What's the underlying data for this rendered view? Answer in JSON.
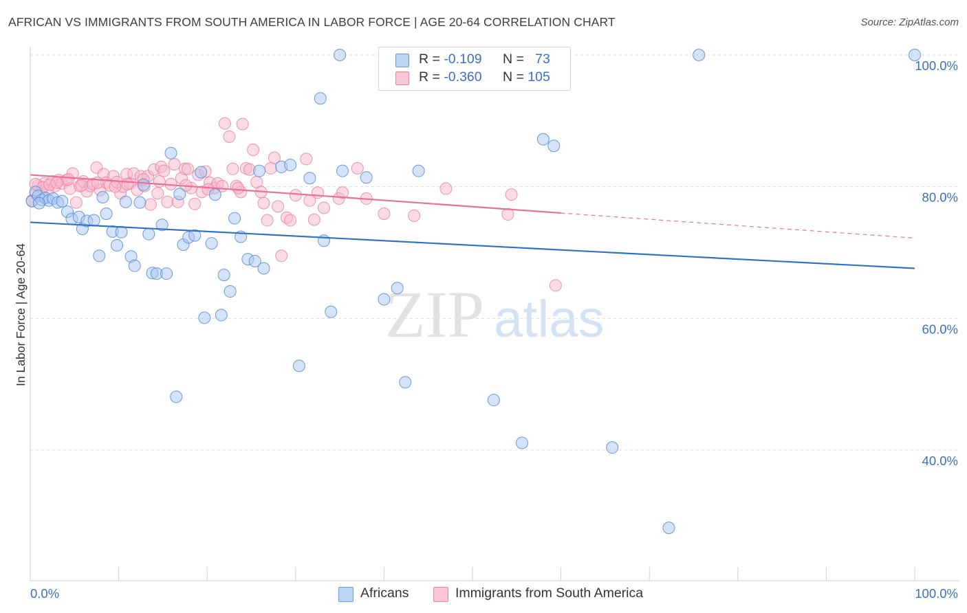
{
  "title": "AFRICAN VS IMMIGRANTS FROM SOUTH AMERICA IN LABOR FORCE | AGE 20-64 CORRELATION CHART",
  "source": "Source: ZipAtlas.com",
  "watermark": {
    "zip": "ZIP",
    "atlas": "atlas"
  },
  "legend": {
    "r_label": "R =",
    "n_label": "N =",
    "rows": [
      {
        "r": "-0.109",
        "n": "73"
      },
      {
        "r": "-0.360",
        "n": "105"
      }
    ]
  },
  "bottom_legend": [
    "Africans",
    "Immigrants from South America"
  ],
  "colors": {
    "africans_fill": "#a9c8f0",
    "africans_stroke": "#5a8fd6",
    "africans_line": "#2f72c8",
    "sa_fill": "#f7b8cc",
    "sa_stroke": "#e7829f",
    "sa_line": "#e8709a",
    "axis_text": "#3a6fc4",
    "grid": "#dcdcdc"
  },
  "chart_data": {
    "type": "scatter",
    "ylabel": "In Labor Force | Age 20-64",
    "xlim": [
      0,
      100
    ],
    "ylim": [
      20,
      102
    ],
    "x_tick_labels": [
      "0.0%",
      "100.0%"
    ],
    "y_ticks": [
      40,
      60,
      80,
      100
    ],
    "y_tick_labels": [
      "40.0%",
      "60.0%",
      "80.0%",
      "100.0%"
    ],
    "grid": true,
    "series": [
      {
        "name": "Africans",
        "points": [
          [
            0.2,
            77.8
          ],
          [
            0.6,
            79.2
          ],
          [
            0.9,
            78.6
          ],
          [
            1.3,
            78.0
          ],
          [
            1.7,
            78.3
          ],
          [
            2.1,
            77.9
          ],
          [
            2.6,
            78.2
          ],
          [
            3.1,
            77.6
          ],
          [
            3.6,
            77.8
          ],
          [
            4.2,
            76.2
          ],
          [
            4.7,
            75.1
          ],
          [
            5.5,
            75.4
          ],
          [
            5.9,
            73.6
          ],
          [
            6.4,
            74.8
          ],
          [
            7.2,
            74.9
          ],
          [
            7.8,
            69.5
          ],
          [
            8.2,
            78.4
          ],
          [
            8.6,
            75.9
          ],
          [
            9.3,
            73.2
          ],
          [
            9.8,
            71.1
          ],
          [
            10.3,
            73.1
          ],
          [
            10.8,
            77.7
          ],
          [
            11.4,
            69.4
          ],
          [
            11.8,
            68.0
          ],
          [
            12.4,
            77.6
          ],
          [
            12.8,
            80.3
          ],
          [
            13.4,
            72.8
          ],
          [
            13.8,
            66.9
          ],
          [
            14.3,
            66.8
          ],
          [
            14.9,
            74.2
          ],
          [
            15.4,
            66.8
          ],
          [
            15.9,
            85.1
          ],
          [
            16.5,
            48.1
          ],
          [
            16.9,
            78.9
          ],
          [
            17.3,
            71.2
          ],
          [
            17.9,
            72.3
          ],
          [
            18.6,
            72.6
          ],
          [
            19.3,
            82.2
          ],
          [
            19.7,
            60.1
          ],
          [
            20.5,
            71.4
          ],
          [
            20.9,
            78.8
          ],
          [
            21.6,
            60.5
          ],
          [
            21.9,
            66.6
          ],
          [
            22.6,
            64.1
          ],
          [
            23.1,
            75.2
          ],
          [
            23.8,
            72.4
          ],
          [
            24.6,
            69.0
          ],
          [
            25.4,
            68.7
          ],
          [
            25.9,
            82.4
          ],
          [
            26.4,
            67.6
          ],
          [
            28.4,
            83.0
          ],
          [
            29.4,
            83.3
          ],
          [
            30.4,
            52.8
          ],
          [
            31.6,
            81.3
          ],
          [
            32.8,
            93.4
          ],
          [
            33.2,
            71.8
          ],
          [
            34.0,
            61.0
          ],
          [
            35.0,
            100.0
          ],
          [
            35.3,
            82.4
          ],
          [
            38.0,
            81.4
          ],
          [
            40.0,
            62.9
          ],
          [
            41.5,
            64.6
          ],
          [
            42.4,
            50.3
          ],
          [
            43.9,
            82.4
          ],
          [
            52.4,
            47.6
          ],
          [
            55.6,
            41.1
          ],
          [
            58.0,
            87.2
          ],
          [
            59.2,
            86.2
          ],
          [
            65.8,
            40.4
          ],
          [
            72.2,
            28.2
          ],
          [
            75.6,
            100.0
          ],
          [
            100.0,
            100.0
          ],
          [
            1.0,
            77.5
          ]
        ]
      },
      {
        "name": "Immigrants from South America",
        "points": [
          [
            0.2,
            77.9
          ],
          [
            0.6,
            79.0
          ],
          [
            0.9,
            80.2
          ],
          [
            1.3,
            78.6
          ],
          [
            1.6,
            80.5
          ],
          [
            2.0,
            79.4
          ],
          [
            2.5,
            80.8
          ],
          [
            2.8,
            80.1
          ],
          [
            3.2,
            81.0
          ],
          [
            3.6,
            80.5
          ],
          [
            4.1,
            81.0
          ],
          [
            4.5,
            79.7
          ],
          [
            4.8,
            82.0
          ],
          [
            5.2,
            77.6
          ],
          [
            5.6,
            80.1
          ],
          [
            6.0,
            80.8
          ],
          [
            6.4,
            79.3
          ],
          [
            6.8,
            80.1
          ],
          [
            7.1,
            80.4
          ],
          [
            7.5,
            82.9
          ],
          [
            7.9,
            79.5
          ],
          [
            8.3,
            81.9
          ],
          [
            8.6,
            80.6
          ],
          [
            9.0,
            80.2
          ],
          [
            9.4,
            81.6
          ],
          [
            9.8,
            80.7
          ],
          [
            10.2,
            79.0
          ],
          [
            10.5,
            80.0
          ],
          [
            10.9,
            81.9
          ],
          [
            11.3,
            80.5
          ],
          [
            11.7,
            82.0
          ],
          [
            12.1,
            79.5
          ],
          [
            12.5,
            81.6
          ],
          [
            12.9,
            80.1
          ],
          [
            13.3,
            81.6
          ],
          [
            13.6,
            77.3
          ],
          [
            14.0,
            82.6
          ],
          [
            14.4,
            79.0
          ],
          [
            14.8,
            83.0
          ],
          [
            15.1,
            82.4
          ],
          [
            15.5,
            77.7
          ],
          [
            15.9,
            80.4
          ],
          [
            16.3,
            83.4
          ],
          [
            16.7,
            77.7
          ],
          [
            17.1,
            81.3
          ],
          [
            17.5,
            82.7
          ],
          [
            17.8,
            82.7
          ],
          [
            18.2,
            79.8
          ],
          [
            18.6,
            77.4
          ],
          [
            19.0,
            81.8
          ],
          [
            19.4,
            79.2
          ],
          [
            19.8,
            82.3
          ],
          [
            20.3,
            80.6
          ],
          [
            20.8,
            79.8
          ],
          [
            21.2,
            80.5
          ],
          [
            21.7,
            80.1
          ],
          [
            22.0,
            89.6
          ],
          [
            22.5,
            87.6
          ],
          [
            22.9,
            82.7
          ],
          [
            23.3,
            80.1
          ],
          [
            23.8,
            79.2
          ],
          [
            24.0,
            89.5
          ],
          [
            24.4,
            82.8
          ],
          [
            24.8,
            82.6
          ],
          [
            25.2,
            85.6
          ],
          [
            25.6,
            80.7
          ],
          [
            26.1,
            79.2
          ],
          [
            26.4,
            77.5
          ],
          [
            26.8,
            74.9
          ],
          [
            27.2,
            82.8
          ],
          [
            27.6,
            84.4
          ],
          [
            28.0,
            77.0
          ],
          [
            28.4,
            69.5
          ],
          [
            29.0,
            75.3
          ],
          [
            29.4,
            74.9
          ],
          [
            30.0,
            78.7
          ],
          [
            31.2,
            84.2
          ],
          [
            31.6,
            77.9
          ],
          [
            32.1,
            75.0
          ],
          [
            32.5,
            79.1
          ],
          [
            33.2,
            76.8
          ],
          [
            34.9,
            78.2
          ],
          [
            35.3,
            79.1
          ],
          [
            37.0,
            82.8
          ],
          [
            38.0,
            78.2
          ],
          [
            40.0,
            75.9
          ],
          [
            43.4,
            75.6
          ],
          [
            47.0,
            79.7
          ],
          [
            54.0,
            75.8
          ],
          [
            54.4,
            78.8
          ],
          [
            59.4,
            65.0
          ],
          [
            0.6,
            80.4
          ],
          [
            1.4,
            79.9
          ],
          [
            2.2,
            80.3
          ],
          [
            3.0,
            80.6
          ],
          [
            4.3,
            81.1
          ],
          [
            5.8,
            80.2
          ],
          [
            7.6,
            80.6
          ],
          [
            9.6,
            80.0
          ],
          [
            11.0,
            80.4
          ],
          [
            12.8,
            81.1
          ],
          [
            14.6,
            80.8
          ],
          [
            17.6,
            80.2
          ],
          [
            20.1,
            79.6
          ],
          [
            23.5,
            79.8
          ]
        ]
      }
    ],
    "trendlines": [
      {
        "name": "Africans",
        "x": [
          0,
          100
        ],
        "y": [
          74.6,
          67.6
        ]
      },
      {
        "name": "Immigrants from South America",
        "x": [
          0,
          60
        ],
        "y": [
          81.8,
          76.0
        ],
        "dashed_x": [
          60,
          100
        ],
        "dashed_y": [
          76.0,
          72.2
        ]
      }
    ]
  }
}
